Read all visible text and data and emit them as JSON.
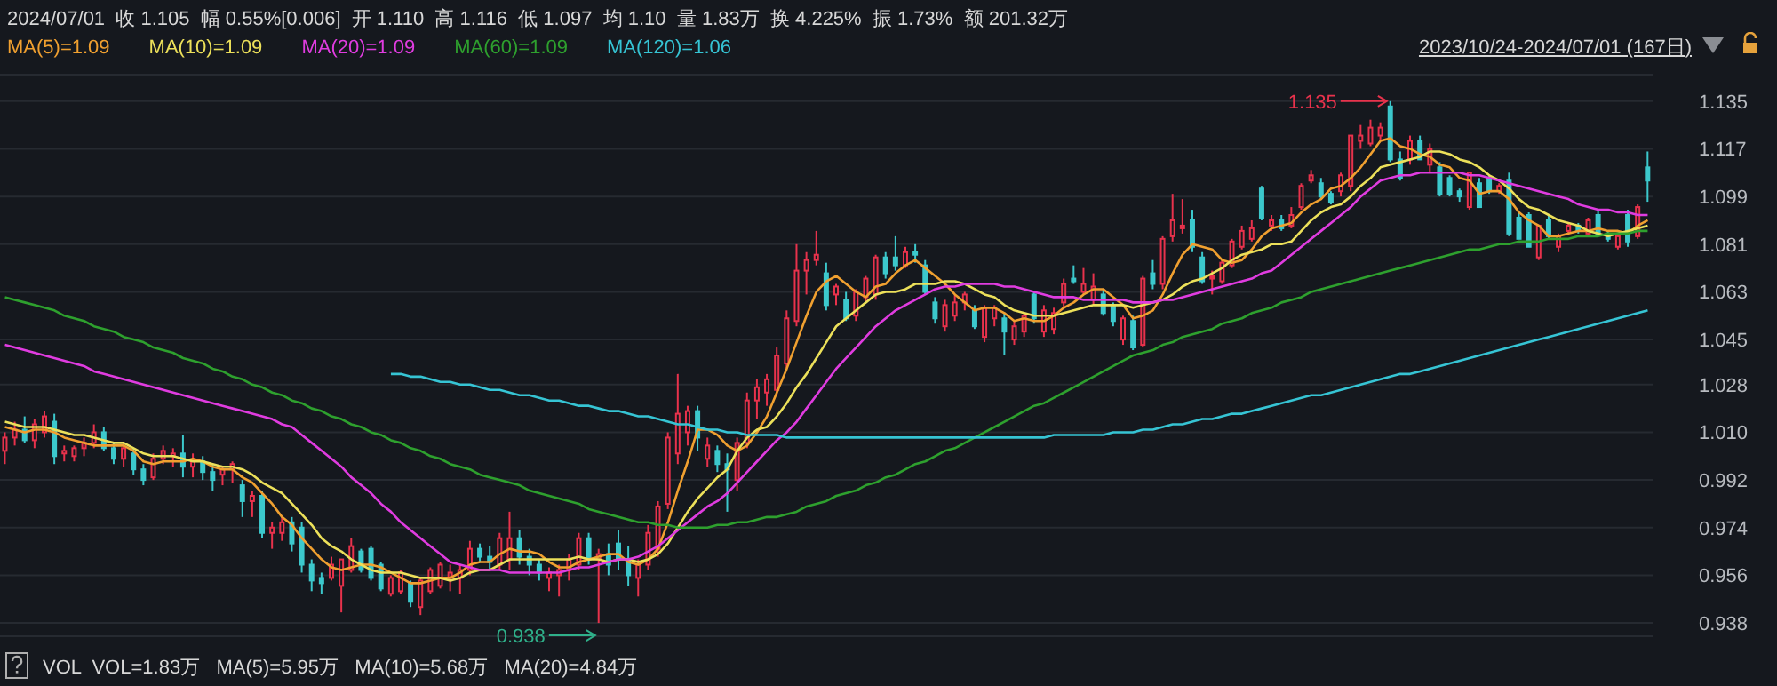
{
  "chart_data": {
    "type": "candlestick",
    "title": "2024/07/01  收 1.105  幅 0.55%[0.006]  开 1.110  高 1.116  低 1.097  均 1.10  量 1.83万  换 4.225%  振 1.73%  额 201.32万",
    "subtitle": "2023/10/24-2024/07/01 (167日)",
    "xlabel": "VOL  VOL=1.83万   MA(5)=5.95万   MA(10)=5.68万   MA(20)=4.84万",
    "categories": [
      null,
      null,
      null,
      null,
      null,
      null,
      null,
      null,
      null,
      null,
      null,
      null,
      null,
      null,
      null,
      null,
      null,
      null,
      null,
      null,
      null,
      null,
      null,
      null,
      null,
      null,
      null,
      null,
      null,
      null,
      null,
      null,
      null,
      null,
      null,
      null,
      null,
      null,
      null,
      null,
      null,
      null,
      null,
      null,
      null,
      null,
      null,
      null,
      null,
      null,
      null,
      null,
      null,
      null,
      null,
      null,
      null,
      null,
      null,
      null,
      null,
      null,
      null,
      null,
      null,
      null,
      null,
      null,
      null,
      null,
      null,
      null,
      null,
      null,
      null,
      null,
      null,
      null,
      null,
      null,
      null,
      null,
      null,
      null,
      null,
      null,
      null,
      null,
      null,
      null,
      null,
      null,
      null,
      null,
      null,
      null,
      null,
      null,
      null,
      null,
      null,
      null,
      null,
      null,
      null,
      null,
      null,
      null,
      null,
      null,
      null,
      null,
      null,
      null,
      null,
      null,
      null,
      null,
      null,
      null,
      null,
      null,
      null,
      null,
      null,
      null,
      null,
      null,
      null,
      null,
      null,
      null,
      null,
      null,
      null,
      null,
      null,
      null,
      null,
      null,
      null,
      null,
      null,
      null,
      null,
      null,
      null,
      null,
      null,
      null,
      null,
      null,
      null,
      null,
      null,
      null,
      null,
      null,
      null,
      null,
      null,
      null,
      null,
      null,
      null,
      null,
      null
    ],
    "ohlc": [
      [
        1.003,
        1.01,
        0.998,
        1.008
      ],
      [
        1.008,
        1.014,
        1.005,
        1.011
      ],
      [
        1.011,
        1.016,
        1.006,
        1.007
      ],
      [
        1.007,
        1.015,
        1.004,
        1.013
      ],
      [
        1.01,
        1.018,
        1.008,
        1.016
      ],
      [
        1.014,
        1.017,
        0.998,
        1.001
      ],
      [
        1.002,
        1.005,
        0.999,
        1.003
      ],
      [
        1.001,
        1.005,
        0.999,
        1.004
      ],
      [
        1.004,
        1.008,
        1.001,
        1.006
      ],
      [
        1.006,
        1.013,
        1.004,
        1.01
      ],
      [
        1.01,
        1.012,
        1.003,
        1.004
      ],
      [
        1.004,
        1.006,
        0.998,
        1.0
      ],
      [
        1.0,
        1.006,
        0.997,
        1.004
      ],
      [
        1.002,
        1.004,
        0.994,
        0.996
      ],
      [
        0.996,
        0.998,
        0.99,
        0.992
      ],
      [
        0.993,
        1.002,
        0.992,
        1.0
      ],
      [
        1.0,
        1.005,
        0.998,
        1.003
      ],
      [
        1.001,
        1.004,
        0.997,
        1.002
      ],
      [
        1.002,
        1.009,
        0.993,
        0.997
      ],
      [
        0.997,
        1.002,
        0.993,
        0.999
      ],
      [
        0.999,
        1.001,
        0.992,
        0.995
      ],
      [
        0.995,
        0.998,
        0.988,
        0.992
      ],
      [
        0.994,
        0.997,
        0.99,
        0.996
      ],
      [
        0.996,
        0.999,
        0.991,
        0.998
      ],
      [
        0.99,
        0.992,
        0.978,
        0.984
      ],
      [
        0.984,
        0.988,
        0.978,
        0.986
      ],
      [
        0.986,
        0.988,
        0.97,
        0.972
      ],
      [
        0.972,
        0.976,
        0.966,
        0.974
      ],
      [
        0.972,
        0.978,
        0.969,
        0.976
      ],
      [
        0.976,
        0.978,
        0.965,
        0.968
      ],
      [
        0.974,
        0.976,
        0.957,
        0.96
      ],
      [
        0.96,
        0.962,
        0.95,
        0.954
      ],
      [
        0.955,
        0.957,
        0.949,
        0.953
      ],
      [
        0.955,
        0.963,
        0.954,
        0.96
      ],
      [
        0.952,
        0.962,
        0.942,
        0.962
      ],
      [
        0.958,
        0.97,
        0.957,
        0.967
      ],
      [
        0.965,
        0.966,
        0.957,
        0.958
      ],
      [
        0.966,
        0.967,
        0.954,
        0.955
      ],
      [
        0.96,
        0.961,
        0.95,
        0.951
      ],
      [
        0.949,
        0.956,
        0.948,
        0.955
      ],
      [
        0.95,
        0.958,
        0.949,
        0.957
      ],
      [
        0.953,
        0.954,
        0.944,
        0.946
      ],
      [
        0.944,
        0.955,
        0.941,
        0.954
      ],
      [
        0.95,
        0.959,
        0.949,
        0.958
      ],
      [
        0.952,
        0.961,
        0.951,
        0.96
      ],
      [
        0.955,
        0.96,
        0.95,
        0.957
      ],
      [
        0.955,
        0.96,
        0.949,
        0.958
      ],
      [
        0.958,
        0.969,
        0.956,
        0.966
      ],
      [
        0.966,
        0.968,
        0.961,
        0.963
      ],
      [
        0.963,
        0.967,
        0.958,
        0.961
      ],
      [
        0.96,
        0.972,
        0.958,
        0.97
      ],
      [
        0.962,
        0.98,
        0.958,
        0.97
      ],
      [
        0.97,
        0.973,
        0.96,
        0.963
      ],
      [
        0.963,
        0.966,
        0.956,
        0.96
      ],
      [
        0.96,
        0.962,
        0.954,
        0.957
      ],
      [
        0.955,
        0.959,
        0.95,
        0.957
      ],
      [
        0.956,
        0.96,
        0.948,
        0.958
      ],
      [
        0.958,
        0.964,
        0.954,
        0.962
      ],
      [
        0.96,
        0.972,
        0.958,
        0.97
      ],
      [
        0.97,
        0.972,
        0.96,
        0.962
      ],
      [
        0.962,
        0.966,
        0.938,
        0.964
      ],
      [
        0.964,
        0.968,
        0.956,
        0.96
      ],
      [
        0.968,
        0.973,
        0.958,
        0.962
      ],
      [
        0.962,
        0.967,
        0.952,
        0.956
      ],
      [
        0.955,
        0.962,
        0.948,
        0.96
      ],
      [
        0.96,
        0.975,
        0.958,
        0.972
      ],
      [
        0.966,
        0.984,
        0.963,
        0.982
      ],
      [
        0.983,
        1.01,
        0.981,
        1.008
      ],
      [
        1.002,
        1.032,
        0.998,
        1.017
      ],
      [
        1.01,
        1.02,
        1.005,
        1.018
      ],
      [
        1.018,
        1.02,
        1.003,
        1.008
      ],
      [
        1.0,
        1.008,
        0.997,
        1.005
      ],
      [
        1.003,
        1.005,
        0.995,
        0.998
      ],
      [
        0.998,
        1.002,
        0.98,
        0.996
      ],
      [
        0.992,
        1.008,
        0.988,
        1.006
      ],
      [
        1.006,
        1.025,
        1.004,
        1.022
      ],
      [
        1.022,
        1.03,
        1.015,
        1.027
      ],
      [
        1.025,
        1.032,
        1.02,
        1.03
      ],
      [
        1.026,
        1.042,
        1.024,
        1.039
      ],
      [
        1.036,
        1.056,
        1.034,
        1.053
      ],
      [
        1.052,
        1.081,
        1.05,
        1.071
      ],
      [
        1.071,
        1.078,
        1.062,
        1.075
      ],
      [
        1.075,
        1.086,
        1.073,
        1.077
      ],
      [
        1.07,
        1.074,
        1.056,
        1.058
      ],
      [
        1.062,
        1.066,
        1.058,
        1.065
      ],
      [
        1.06,
        1.063,
        1.052,
        1.053
      ],
      [
        1.054,
        1.064,
        1.052,
        1.063
      ],
      [
        1.061,
        1.069,
        1.059,
        1.068
      ],
      [
        1.062,
        1.077,
        1.06,
        1.076
      ],
      [
        1.076,
        1.078,
        1.068,
        1.07
      ],
      [
        1.076,
        1.084,
        1.071,
        1.073
      ],
      [
        1.073,
        1.08,
        1.072,
        1.078
      ],
      [
        1.078,
        1.081,
        1.074,
        1.077
      ],
      [
        1.073,
        1.075,
        1.062,
        1.063
      ],
      [
        1.059,
        1.061,
        1.051,
        1.053
      ],
      [
        1.05,
        1.06,
        1.048,
        1.058
      ],
      [
        1.054,
        1.062,
        1.052,
        1.059
      ],
      [
        1.059,
        1.063,
        1.056,
        1.062
      ],
      [
        1.056,
        1.058,
        1.049,
        1.05
      ],
      [
        1.046,
        1.058,
        1.044,
        1.057
      ],
      [
        1.053,
        1.058,
        1.05,
        1.057
      ],
      [
        1.053,
        1.055,
        1.039,
        1.048
      ],
      [
        1.045,
        1.052,
        1.043,
        1.05
      ],
      [
        1.048,
        1.055,
        1.046,
        1.054
      ],
      [
        1.062,
        1.063,
        1.051,
        1.053
      ],
      [
        1.048,
        1.058,
        1.046,
        1.056
      ],
      [
        1.049,
        1.057,
        1.047,
        1.055
      ],
      [
        1.059,
        1.068,
        1.057,
        1.066
      ],
      [
        1.068,
        1.073,
        1.066,
        1.067
      ],
      [
        1.063,
        1.072,
        1.062,
        1.066
      ],
      [
        1.06,
        1.07,
        1.058,
        1.065
      ],
      [
        1.062,
        1.064,
        1.054,
        1.055
      ],
      [
        1.058,
        1.059,
        1.05,
        1.052
      ],
      [
        1.045,
        1.054,
        1.043,
        1.053
      ],
      [
        1.052,
        1.054,
        1.041,
        1.042
      ],
      [
        1.043,
        1.069,
        1.042,
        1.068
      ],
      [
        1.07,
        1.075,
        1.064,
        1.066
      ],
      [
        1.066,
        1.084,
        1.064,
        1.083
      ],
      [
        1.084,
        1.1,
        1.082,
        1.09
      ],
      [
        1.087,
        1.098,
        1.085,
        1.088
      ],
      [
        1.09,
        1.094,
        1.078,
        1.08
      ],
      [
        1.076,
        1.078,
        1.066,
        1.067
      ],
      [
        1.069,
        1.071,
        1.062,
        1.068
      ],
      [
        1.067,
        1.075,
        1.066,
        1.074
      ],
      [
        1.073,
        1.083,
        1.072,
        1.082
      ],
      [
        1.08,
        1.088,
        1.079,
        1.086
      ],
      [
        1.083,
        1.09,
        1.082,
        1.087
      ],
      [
        1.102,
        1.103,
        1.09,
        1.091
      ],
      [
        1.088,
        1.092,
        1.086,
        1.09
      ],
      [
        1.09,
        1.092,
        1.086,
        1.087
      ],
      [
        1.088,
        1.095,
        1.087,
        1.092
      ],
      [
        1.095,
        1.104,
        1.094,
        1.103
      ],
      [
        1.105,
        1.109,
        1.104,
        1.107
      ],
      [
        1.104,
        1.106,
        1.098,
        1.099
      ],
      [
        1.1,
        1.101,
        1.096,
        1.097
      ],
      [
        1.101,
        1.108,
        1.099,
        1.107
      ],
      [
        1.103,
        1.122,
        1.101,
        1.122
      ],
      [
        1.12,
        1.126,
        1.117,
        1.122
      ],
      [
        1.119,
        1.128,
        1.118,
        1.125
      ],
      [
        1.122,
        1.127,
        1.12,
        1.125
      ],
      [
        1.133,
        1.135,
        1.112,
        1.113
      ],
      [
        1.113,
        1.116,
        1.105,
        1.106
      ],
      [
        1.113,
        1.122,
        1.111,
        1.12
      ],
      [
        1.12,
        1.122,
        1.113,
        1.113
      ],
      [
        1.111,
        1.119,
        1.108,
        1.117
      ],
      [
        1.11,
        1.112,
        1.099,
        1.1
      ],
      [
        1.106,
        1.107,
        1.099,
        1.1
      ],
      [
        1.101,
        1.102,
        1.097,
        1.099
      ],
      [
        1.095,
        1.108,
        1.094,
        1.108
      ],
      [
        1.104,
        1.106,
        1.095,
        1.095
      ],
      [
        1.106,
        1.107,
        1.1,
        1.101
      ],
      [
        1.101,
        1.104,
        1.1,
        1.103
      ],
      [
        1.105,
        1.108,
        1.084,
        1.085
      ],
      [
        1.091,
        1.093,
        1.083,
        1.083
      ],
      [
        1.092,
        1.093,
        1.08,
        1.08
      ],
      [
        1.076,
        1.088,
        1.075,
        1.088
      ],
      [
        1.09,
        1.092,
        1.083,
        1.084
      ],
      [
        1.08,
        1.085,
        1.078,
        1.084
      ],
      [
        1.086,
        1.089,
        1.085,
        1.088
      ],
      [
        1.088,
        1.089,
        1.085,
        1.086
      ],
      [
        1.085,
        1.091,
        1.084,
        1.09
      ],
      [
        1.092,
        1.094,
        1.084,
        1.085
      ],
      [
        1.085,
        1.086,
        1.082,
        1.083
      ],
      [
        1.08,
        1.085,
        1.079,
        1.084
      ],
      [
        1.092,
        1.094,
        1.08,
        1.082
      ],
      [
        1.084,
        1.096,
        1.083,
        1.095
      ],
      [
        1.11,
        1.116,
        1.097,
        1.105
      ]
    ],
    "colors": [
      "#e8324c",
      "#e8324c",
      "#3cc8cc",
      "#e8324c",
      "#e8324c",
      "#3cc8cc",
      "#e8324c",
      "#e8324c",
      "#e8324c",
      "#e8324c",
      "#3cc8cc",
      "#3cc8cc",
      "#e8324c",
      "#3cc8cc",
      "#3cc8cc",
      "#e8324c",
      "#e8324c",
      "#e8324c",
      "#3cc8cc",
      "#e8324c",
      "#3cc8cc",
      "#3cc8cc",
      "#e8324c",
      "#e8324c",
      "#3cc8cc",
      "#e8324c",
      "#3cc8cc",
      "#e8324c",
      "#e8324c",
      "#3cc8cc",
      "#3cc8cc",
      "#3cc8cc",
      "#3cc8cc",
      "#e8324c",
      "#e8324c",
      "#e8324c",
      "#3cc8cc",
      "#3cc8cc",
      "#3cc8cc",
      "#e8324c",
      "#e8324c",
      "#3cc8cc",
      "#e8324c",
      "#e8324c",
      "#e8324c",
      "#e8324c",
      "#e8324c",
      "#e8324c",
      "#3cc8cc",
      "#3cc8cc",
      "#e8324c",
      "#e8324c",
      "#3cc8cc",
      "#3cc8cc",
      "#3cc8cc",
      "#e8324c",
      "#e8324c",
      "#e8324c",
      "#e8324c",
      "#3cc8cc",
      "#e8324c",
      "#3cc8cc",
      "#3cc8cc",
      "#3cc8cc",
      "#e8324c",
      "#e8324c",
      "#e8324c",
      "#e8324c",
      "#e8324c",
      "#e8324c",
      "#3cc8cc",
      "#e8324c",
      "#3cc8cc",
      "#3cc8cc",
      "#e8324c",
      "#e8324c",
      "#e8324c",
      "#e8324c",
      "#e8324c",
      "#e8324c",
      "#e8324c",
      "#e8324c",
      "#e8324c",
      "#3cc8cc",
      "#e8324c",
      "#3cc8cc",
      "#e8324c",
      "#e8324c",
      "#e8324c",
      "#3cc8cc",
      "#3cc8cc",
      "#e8324c",
      "#3cc8cc",
      "#3cc8cc",
      "#3cc8cc",
      "#e8324c",
      "#e8324c",
      "#e8324c",
      "#3cc8cc",
      "#e8324c",
      "#e8324c",
      "#3cc8cc",
      "#e8324c",
      "#e8324c",
      "#3cc8cc",
      "#e8324c",
      "#e8324c",
      "#e8324c",
      "#3cc8cc",
      "#e8324c",
      "#e8324c",
      "#3cc8cc",
      "#3cc8cc",
      "#e8324c",
      "#3cc8cc",
      "#e8324c",
      "#3cc8cc",
      "#e8324c",
      "#e8324c",
      "#e8324c",
      "#3cc8cc",
      "#3cc8cc",
      "#e8324c",
      "#e8324c",
      "#e8324c",
      "#e8324c",
      "#e8324c",
      "#3cc8cc",
      "#e8324c",
      "#3cc8cc",
      "#e8324c",
      "#e8324c",
      "#e8324c",
      "#3cc8cc",
      "#3cc8cc",
      "#e8324c",
      "#e8324c",
      "#e8324c",
      "#e8324c",
      "#e8324c",
      "#3cc8cc",
      "#3cc8cc",
      "#e8324c",
      "#3cc8cc",
      "#e8324c",
      "#3cc8cc",
      "#3cc8cc",
      "#3cc8cc",
      "#e8324c",
      "#3cc8cc",
      "#3cc8cc",
      "#e8324c",
      "#3cc8cc",
      "#3cc8cc",
      "#3cc8cc",
      "#e8324c",
      "#3cc8cc",
      "#e8324c",
      "#e8324c",
      "#3cc8cc",
      "#e8324c",
      "#3cc8cc",
      "#3cc8cc",
      "#e8324c",
      "#3cc8cc",
      "#e8324c",
      "#3cc8cc"
    ],
    "series": [
      {
        "type": "line",
        "name": "MA(5)=1.09",
        "color": "#f0a030",
        "values": [
          1.012,
          1.011,
          1.01,
          1.011,
          1.011,
          1.01,
          1.008,
          1.007,
          1.006,
          1.005,
          1.005,
          1.005,
          1.005,
          1.003,
          0.999,
          0.998,
          0.999,
          0.999,
          0.999,
          1.0,
          0.999,
          0.997,
          0.996,
          0.996,
          0.993,
          0.991,
          0.987,
          0.983,
          0.978,
          0.975,
          0.97,
          0.966,
          0.962,
          0.959,
          0.958,
          0.959,
          0.96,
          0.96,
          0.959,
          0.957,
          0.955,
          0.953,
          0.953,
          0.954,
          0.955,
          0.955,
          0.957,
          0.96,
          0.961,
          0.961,
          0.964,
          0.966,
          0.965,
          0.965,
          0.964,
          0.961,
          0.959,
          0.959,
          0.961,
          0.962,
          0.963,
          0.964,
          0.964,
          0.961,
          0.96,
          0.962,
          0.966,
          0.976,
          0.988,
          0.999,
          1.011,
          1.011,
          1.009,
          1.005,
          1.003,
          1.005,
          1.01,
          1.016,
          1.025,
          1.034,
          1.044,
          1.054,
          1.063,
          1.067,
          1.069,
          1.066,
          1.063,
          1.061,
          1.065,
          1.066,
          1.07,
          1.073,
          1.075,
          1.072,
          1.069,
          1.066,
          1.062,
          1.059,
          1.056,
          1.057,
          1.057,
          1.055,
          1.052,
          1.053,
          1.052,
          1.052,
          1.054,
          1.057,
          1.059,
          1.062,
          1.064,
          1.064,
          1.061,
          1.058,
          1.053,
          1.054,
          1.056,
          1.062,
          1.07,
          1.077,
          1.081,
          1.08,
          1.079,
          1.075,
          1.074,
          1.075,
          1.079,
          1.084,
          1.087,
          1.088,
          1.089,
          1.093,
          1.096,
          1.098,
          1.102,
          1.103,
          1.106,
          1.11,
          1.115,
          1.12,
          1.121,
          1.118,
          1.117,
          1.115,
          1.114,
          1.111,
          1.11,
          1.106,
          1.105,
          1.1,
          1.101,
          1.101,
          1.098,
          1.093,
          1.09,
          1.088,
          1.084,
          1.084,
          1.085,
          1.086,
          1.086,
          1.087,
          1.086,
          1.086,
          1.085,
          1.088,
          1.09
        ]
      },
      {
        "type": "line",
        "name": "MA(10)=1.09",
        "color": "#ece05a",
        "values": [
          1.014,
          1.013,
          1.012,
          1.012,
          1.012,
          1.011,
          1.01,
          1.009,
          1.009,
          1.008,
          1.007,
          1.006,
          1.006,
          1.004,
          1.002,
          1.001,
          1.001,
          1.001,
          1.0,
          0.999,
          0.999,
          0.998,
          0.997,
          0.997,
          0.996,
          0.994,
          0.991,
          0.989,
          0.987,
          0.983,
          0.979,
          0.975,
          0.97,
          0.967,
          0.965,
          0.962,
          0.96,
          0.958,
          0.957,
          0.957,
          0.957,
          0.956,
          0.955,
          0.955,
          0.955,
          0.954,
          0.955,
          0.957,
          0.958,
          0.958,
          0.96,
          0.962,
          0.962,
          0.962,
          0.962,
          0.962,
          0.962,
          0.962,
          0.963,
          0.962,
          0.962,
          0.961,
          0.962,
          0.962,
          0.961,
          0.962,
          0.964,
          0.968,
          0.974,
          0.98,
          0.985,
          0.989,
          0.993,
          0.996,
          1.003,
          1.008,
          1.011,
          1.012,
          1.016,
          1.021,
          1.027,
          1.032,
          1.038,
          1.044,
          1.05,
          1.053,
          1.056,
          1.059,
          1.062,
          1.063,
          1.063,
          1.064,
          1.066,
          1.066,
          1.066,
          1.067,
          1.067,
          1.066,
          1.064,
          1.062,
          1.061,
          1.058,
          1.056,
          1.055,
          1.054,
          1.054,
          1.054,
          1.055,
          1.056,
          1.057,
          1.058,
          1.058,
          1.058,
          1.058,
          1.057,
          1.058,
          1.059,
          1.06,
          1.062,
          1.065,
          1.067,
          1.068,
          1.07,
          1.072,
          1.075,
          1.077,
          1.078,
          1.079,
          1.081,
          1.081,
          1.082,
          1.086,
          1.09,
          1.093,
          1.095,
          1.096,
          1.099,
          1.103,
          1.106,
          1.11,
          1.111,
          1.112,
          1.113,
          1.114,
          1.116,
          1.116,
          1.115,
          1.113,
          1.112,
          1.11,
          1.107,
          1.105,
          1.102,
          1.098,
          1.095,
          1.094,
          1.092,
          1.09,
          1.089,
          1.088,
          1.086,
          1.085,
          1.084,
          1.085,
          1.086,
          1.087,
          1.088
        ]
      },
      {
        "type": "line",
        "name": "MA(20)=1.09",
        "color": "#e03ce0",
        "values": [
          1.043,
          1.042,
          1.041,
          1.04,
          1.039,
          1.038,
          1.037,
          1.036,
          1.035,
          1.033,
          1.032,
          1.031,
          1.03,
          1.029,
          1.028,
          1.027,
          1.026,
          1.025,
          1.024,
          1.023,
          1.022,
          1.021,
          1.02,
          1.019,
          1.018,
          1.017,
          1.016,
          1.015,
          1.013,
          1.012,
          1.009,
          1.006,
          1.003,
          1.0,
          0.997,
          0.993,
          0.99,
          0.987,
          0.983,
          0.98,
          0.976,
          0.973,
          0.97,
          0.967,
          0.964,
          0.961,
          0.96,
          0.959,
          0.958,
          0.958,
          0.958,
          0.957,
          0.957,
          0.957,
          0.957,
          0.957,
          0.957,
          0.958,
          0.959,
          0.959,
          0.96,
          0.961,
          0.962,
          0.962,
          0.963,
          0.965,
          0.967,
          0.97,
          0.973,
          0.976,
          0.979,
          0.982,
          0.984,
          0.987,
          0.991,
          0.995,
          0.999,
          1.003,
          1.007,
          1.01,
          1.014,
          1.019,
          1.024,
          1.029,
          1.034,
          1.038,
          1.042,
          1.046,
          1.05,
          1.053,
          1.056,
          1.058,
          1.06,
          1.062,
          1.064,
          1.065,
          1.065,
          1.066,
          1.066,
          1.066,
          1.066,
          1.065,
          1.065,
          1.064,
          1.063,
          1.062,
          1.061,
          1.061,
          1.061,
          1.06,
          1.06,
          1.06,
          1.06,
          1.06,
          1.059,
          1.059,
          1.059,
          1.06,
          1.06,
          1.061,
          1.062,
          1.063,
          1.064,
          1.065,
          1.066,
          1.067,
          1.068,
          1.07,
          1.071,
          1.074,
          1.077,
          1.08,
          1.083,
          1.086,
          1.089,
          1.092,
          1.095,
          1.099,
          1.102,
          1.105,
          1.106,
          1.107,
          1.107,
          1.108,
          1.108,
          1.108,
          1.108,
          1.108,
          1.107,
          1.107,
          1.106,
          1.105,
          1.104,
          1.103,
          1.102,
          1.101,
          1.1,
          1.099,
          1.098,
          1.096,
          1.095,
          1.094,
          1.094,
          1.093,
          1.093,
          1.092,
          1.092
        ]
      },
      {
        "type": "line",
        "name": "MA(60)=1.09",
        "color": "#2ea02e",
        "values": [
          1.061,
          1.06,
          1.059,
          1.058,
          1.057,
          1.056,
          1.054,
          1.053,
          1.052,
          1.05,
          1.049,
          1.048,
          1.046,
          1.045,
          1.044,
          1.042,
          1.041,
          1.04,
          1.038,
          1.037,
          1.036,
          1.034,
          1.033,
          1.031,
          1.03,
          1.028,
          1.027,
          1.025,
          1.024,
          1.022,
          1.021,
          1.019,
          1.018,
          1.016,
          1.015,
          1.013,
          1.012,
          1.01,
          1.009,
          1.007,
          1.006,
          1.004,
          1.003,
          1.001,
          1.0,
          0.998,
          0.997,
          0.996,
          0.994,
          0.993,
          0.992,
          0.991,
          0.99,
          0.988,
          0.987,
          0.986,
          0.985,
          0.984,
          0.983,
          0.981,
          0.98,
          0.979,
          0.978,
          0.977,
          0.976,
          0.976,
          0.975,
          0.975,
          0.974,
          0.974,
          0.974,
          0.974,
          0.975,
          0.975,
          0.976,
          0.976,
          0.977,
          0.978,
          0.978,
          0.979,
          0.98,
          0.982,
          0.983,
          0.984,
          0.986,
          0.987,
          0.988,
          0.99,
          0.991,
          0.993,
          0.994,
          0.996,
          0.998,
          0.999,
          1.001,
          1.003,
          1.004,
          1.006,
          1.008,
          1.01,
          1.012,
          1.014,
          1.016,
          1.018,
          1.02,
          1.021,
          1.023,
          1.025,
          1.027,
          1.029,
          1.031,
          1.033,
          1.035,
          1.037,
          1.039,
          1.04,
          1.041,
          1.043,
          1.044,
          1.046,
          1.047,
          1.048,
          1.049,
          1.051,
          1.052,
          1.053,
          1.055,
          1.056,
          1.057,
          1.059,
          1.06,
          1.061,
          1.063,
          1.064,
          1.065,
          1.066,
          1.067,
          1.068,
          1.069,
          1.07,
          1.071,
          1.072,
          1.073,
          1.074,
          1.075,
          1.076,
          1.077,
          1.078,
          1.079,
          1.079,
          1.08,
          1.081,
          1.081,
          1.082,
          1.082,
          1.082,
          1.083,
          1.083,
          1.083,
          1.084,
          1.084,
          1.084,
          1.085,
          1.085,
          1.085,
          1.086,
          1.086
        ]
      },
      {
        "type": "line",
        "name": "MA(120)=1.06",
        "color": "#36c4d4",
        "values": [
          null,
          null,
          null,
          null,
          null,
          null,
          null,
          null,
          null,
          null,
          null,
          null,
          null,
          null,
          null,
          null,
          null,
          null,
          null,
          null,
          null,
          null,
          null,
          null,
          null,
          null,
          null,
          null,
          null,
          null,
          null,
          null,
          null,
          null,
          null,
          null,
          null,
          null,
          null,
          1.032,
          1.032,
          1.031,
          1.031,
          1.03,
          1.029,
          1.029,
          1.028,
          1.028,
          1.027,
          1.026,
          1.026,
          1.025,
          1.024,
          1.024,
          1.023,
          1.022,
          1.022,
          1.021,
          1.02,
          1.02,
          1.019,
          1.018,
          1.018,
          1.017,
          1.016,
          1.016,
          1.015,
          1.014,
          1.013,
          1.013,
          1.012,
          1.011,
          1.011,
          1.01,
          1.01,
          1.009,
          1.009,
          1.009,
          1.009,
          1.008,
          1.008,
          1.008,
          1.008,
          1.008,
          1.008,
          1.008,
          1.008,
          1.008,
          1.008,
          1.008,
          1.008,
          1.008,
          1.008,
          1.008,
          1.008,
          1.008,
          1.008,
          1.008,
          1.008,
          1.008,
          1.008,
          1.008,
          1.008,
          1.008,
          1.008,
          1.008,
          1.009,
          1.009,
          1.009,
          1.009,
          1.009,
          1.009,
          1.01,
          1.01,
          1.01,
          1.011,
          1.011,
          1.012,
          1.013,
          1.013,
          1.014,
          1.015,
          1.015,
          1.016,
          1.017,
          1.017,
          1.018,
          1.019,
          1.02,
          1.021,
          1.022,
          1.023,
          1.024,
          1.024,
          1.025,
          1.026,
          1.027,
          1.028,
          1.029,
          1.03,
          1.031,
          1.032,
          1.032,
          1.033,
          1.034,
          1.035,
          1.036,
          1.037,
          1.038,
          1.039,
          1.04,
          1.041,
          1.042,
          1.043,
          1.044,
          1.045,
          1.046,
          1.047,
          1.048,
          1.049,
          1.05,
          1.051,
          1.052,
          1.053,
          1.054,
          1.055,
          1.056
        ]
      }
    ],
    "ylim": [
      0.933,
      1.145
    ],
    "yticks": [
      0.938,
      0.956,
      0.974,
      0.992,
      {
        "value": 1.01,
        "label": "1.010"
      },
      1.028,
      1.045,
      1.063,
      1.081,
      1.099,
      1.117,
      1.135
    ],
    "grid": "y",
    "legend": "top left",
    "annotations": [
      "1.135",
      "0.938"
    ]
  }
}
